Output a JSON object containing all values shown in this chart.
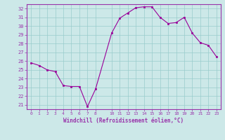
{
  "x": [
    0,
    1,
    2,
    3,
    4,
    5,
    6,
    7,
    8,
    10,
    11,
    12,
    13,
    14,
    15,
    16,
    17,
    18,
    19,
    20,
    21,
    22,
    23
  ],
  "y": [
    25.8,
    25.5,
    25.0,
    24.8,
    23.2,
    23.1,
    23.1,
    20.8,
    22.8,
    29.2,
    30.9,
    31.5,
    32.1,
    32.2,
    32.2,
    31.0,
    30.3,
    30.4,
    31.0,
    29.2,
    28.1,
    27.8,
    26.5
  ],
  "xlim": [
    -0.5,
    23.5
  ],
  "ylim": [
    20.5,
    32.5
  ],
  "yticks": [
    21,
    22,
    23,
    24,
    25,
    26,
    27,
    28,
    29,
    30,
    31,
    32
  ],
  "xticks": [
    0,
    1,
    2,
    3,
    4,
    5,
    6,
    7,
    8,
    10,
    11,
    12,
    13,
    14,
    15,
    16,
    17,
    18,
    19,
    20,
    21,
    22,
    23
  ],
  "xlabel": "Windchill (Refroidissement éolien,°C)",
  "line_color": "#990099",
  "marker_color": "#990099",
  "bg_color": "#cce8e8",
  "grid_color": "#99cccc",
  "spine_color": "#9933aa"
}
